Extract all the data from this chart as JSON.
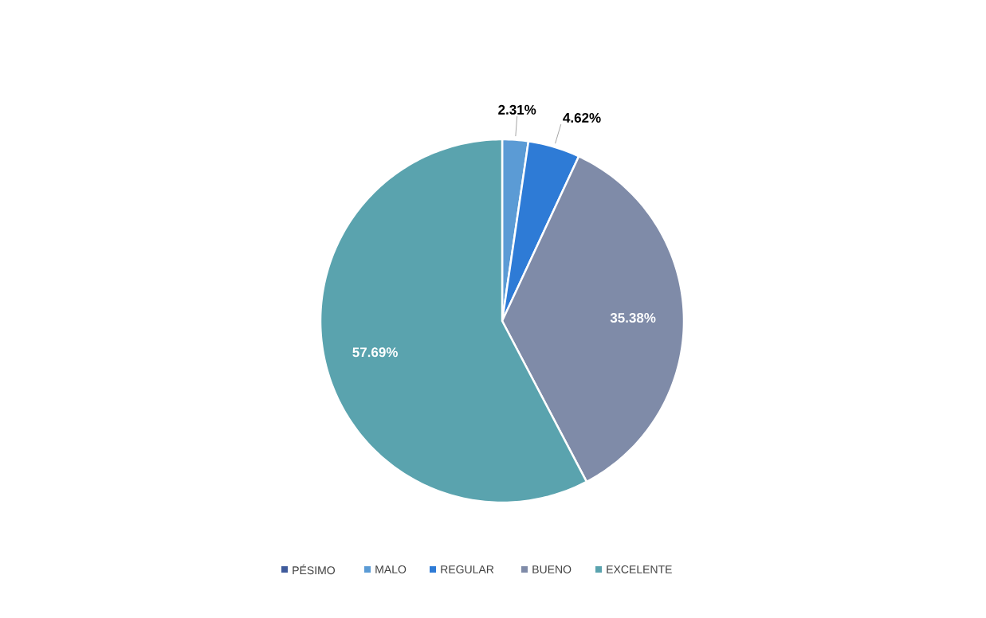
{
  "chart_data": {
    "type": "pie",
    "categories": [
      "PÉSIMO",
      "MALO",
      "REGULAR",
      "BUENO",
      "EXCELENTE"
    ],
    "values": [
      0,
      2.31,
      4.62,
      35.38,
      57.69
    ],
    "colors": [
      "#3f5b9c",
      "#5b9bd5",
      "#2e7bd6",
      "#7f8ba8",
      "#5aa3ae"
    ],
    "value_labels": [
      null,
      "2.31%",
      "4.62%",
      "35.38%",
      "57.69%"
    ],
    "legend": "bottom"
  }
}
